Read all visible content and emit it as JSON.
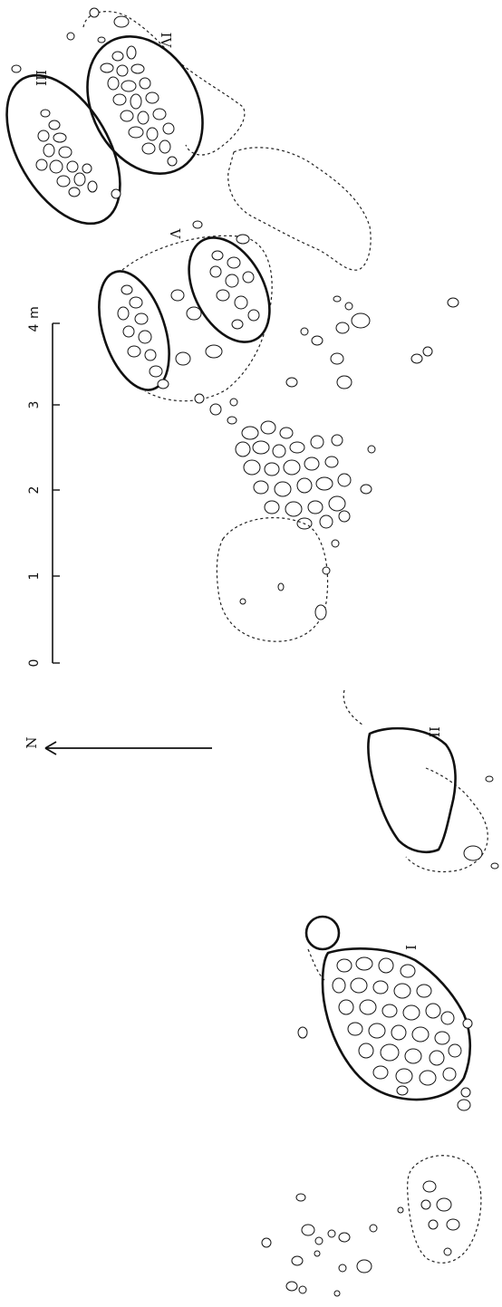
{
  "figure": {
    "feature_labels": [
      "I",
      "II",
      "III",
      "IV",
      "V"
    ],
    "north_label": "N",
    "scale": {
      "ticks": [
        "0",
        "1",
        "2",
        "3",
        "4"
      ],
      "unit": "m"
    }
  }
}
